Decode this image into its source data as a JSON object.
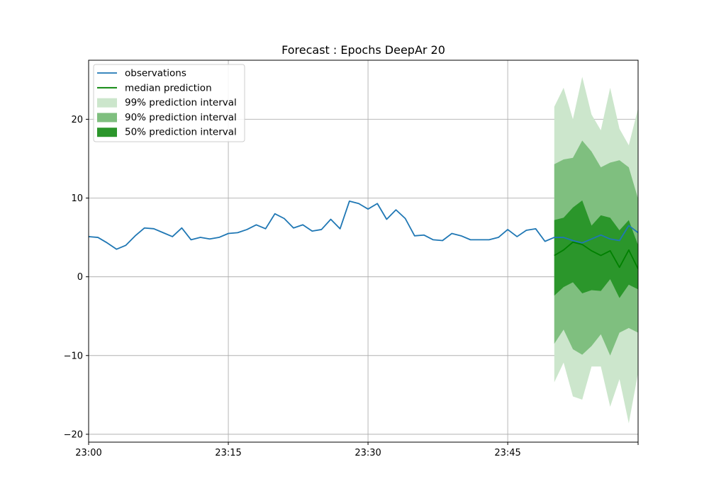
{
  "chart_data": {
    "type": "line",
    "title": "Forecast : Epochs DeepAr 20",
    "xlabel": "",
    "ylabel": "",
    "x_ticks": [
      {
        "minute": 0,
        "label": "23:00"
      },
      {
        "minute": 15,
        "label": "23:15"
      },
      {
        "minute": 30,
        "label": "23:30"
      },
      {
        "minute": 45,
        "label": "23:45"
      },
      {
        "minute": 59,
        "label": ""
      }
    ],
    "y_ticks": [
      -20,
      -10,
      0,
      10,
      20
    ],
    "xlim": [
      0,
      59
    ],
    "ylim": [
      -21,
      27.5
    ],
    "grid": true,
    "legend_position": "top-left",
    "colors": {
      "observations": "#1f77b4",
      "median": "#008000",
      "band99": "#cce6cc",
      "band90": "#7fbf7f",
      "band50": "#2b962b"
    },
    "legend": [
      {
        "key": "observations",
        "label": "observations",
        "kind": "line"
      },
      {
        "key": "median",
        "label": "median prediction",
        "kind": "line"
      },
      {
        "key": "band99",
        "label": "99% prediction interval",
        "kind": "patch"
      },
      {
        "key": "band90",
        "label": "90% prediction interval",
        "kind": "patch"
      },
      {
        "key": "band50",
        "label": "50% prediction interval",
        "kind": "patch"
      }
    ],
    "observations": {
      "name": "observations",
      "x": [
        0,
        1,
        2,
        3,
        4,
        5,
        6,
        7,
        8,
        9,
        10,
        11,
        12,
        13,
        14,
        15,
        16,
        17,
        18,
        19,
        20,
        21,
        22,
        23,
        24,
        25,
        26,
        27,
        28,
        29,
        30,
        31,
        32,
        33,
        34,
        35,
        36,
        37,
        38,
        39,
        40,
        41,
        42,
        43,
        44,
        45,
        46,
        47,
        48,
        49,
        50,
        51,
        52,
        53,
        54,
        55,
        56,
        57,
        58,
        59
      ],
      "y": [
        5.1,
        5.0,
        4.3,
        3.5,
        4.0,
        5.2,
        6.2,
        6.1,
        5.6,
        5.1,
        6.2,
        4.7,
        5.0,
        4.8,
        5.0,
        5.5,
        5.6,
        6.0,
        6.6,
        6.1,
        8.0,
        7.4,
        6.2,
        6.6,
        5.8,
        6.0,
        7.3,
        6.1,
        9.6,
        9.3,
        8.6,
        9.3,
        7.3,
        8.5,
        7.4,
        5.2,
        5.3,
        4.7,
        4.6,
        5.5,
        5.2,
        4.7,
        4.7,
        4.7,
        5.0,
        6.0,
        5.1,
        5.9,
        6.1,
        4.5,
        5.0,
        5.0,
        4.6,
        4.3,
        4.8,
        5.3,
        4.8,
        4.6,
        6.5,
        5.6
      ]
    },
    "forecast": {
      "x": [
        50,
        51,
        52,
        53,
        54,
        55,
        56,
        57,
        58,
        59
      ],
      "median": [
        2.7,
        3.4,
        4.4,
        4.1,
        3.3,
        2.7,
        3.3,
        1.2,
        3.4,
        1.0
      ],
      "band50": {
        "lower": [
          -2.4,
          -1.3,
          -0.7,
          -2.1,
          -1.7,
          -1.8,
          -0.3,
          -2.7,
          -1.0,
          -1.6
        ],
        "upper": [
          7.2,
          7.5,
          8.8,
          9.7,
          6.5,
          7.8,
          7.5,
          5.9,
          7.2,
          4.0
        ]
      },
      "band90": {
        "lower": [
          -8.5,
          -6.7,
          -9.2,
          -9.9,
          -8.8,
          -7.3,
          -10.0,
          -7.1,
          -6.5,
          -7.1
        ],
        "upper": [
          14.3,
          14.9,
          15.1,
          17.3,
          15.9,
          13.9,
          14.5,
          14.8,
          13.9,
          9.9
        ]
      },
      "band99": {
        "lower": [
          -13.4,
          -10.9,
          -15.2,
          -15.6,
          -11.4,
          -11.4,
          -16.5,
          -13.0,
          -18.6,
          -12.2
        ],
        "upper": [
          21.6,
          24.0,
          20.0,
          25.4,
          20.6,
          18.6,
          24.0,
          18.8,
          16.7,
          21.4
        ]
      }
    }
  }
}
